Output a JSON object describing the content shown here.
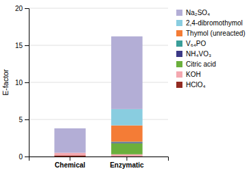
{
  "chart_data": {
    "type": "bar",
    "stacked": true,
    "categories": [
      "Chemical",
      "Enzymatic"
    ],
    "series": [
      {
        "name": "HClO₄",
        "color": "#922b21",
        "values": [
          0.15,
          0.05
        ]
      },
      {
        "name": "KOH",
        "color": "#f4a8b0",
        "values": [
          0.35,
          0.25
        ]
      },
      {
        "name": "Citric acid",
        "color": "#6baf3c",
        "values": [
          0.0,
          1.5
        ]
      },
      {
        "name": "NH₄VO₃",
        "color": "#3b3986",
        "values": [
          0.0,
          0.12
        ]
      },
      {
        "name": "V₆₄PO",
        "color": "#3a9e99",
        "values": [
          0.0,
          0.08
        ]
      },
      {
        "name": "Thymol (unreacted)",
        "color": "#f47c36",
        "values": [
          0.0,
          2.2
        ]
      },
      {
        "name": "2,4-dibromothymol",
        "color": "#89cde0",
        "values": [
          0.0,
          2.2
        ]
      },
      {
        "name": "Na₂SO₄",
        "color": "#b3aed6",
        "values": [
          3.3,
          9.8
        ]
      }
    ],
    "ylabel": "E-factor",
    "ylim": [
      0,
      20
    ],
    "yticks": [
      0,
      5,
      10,
      15,
      20
    ],
    "grid": true,
    "legend": "right"
  }
}
